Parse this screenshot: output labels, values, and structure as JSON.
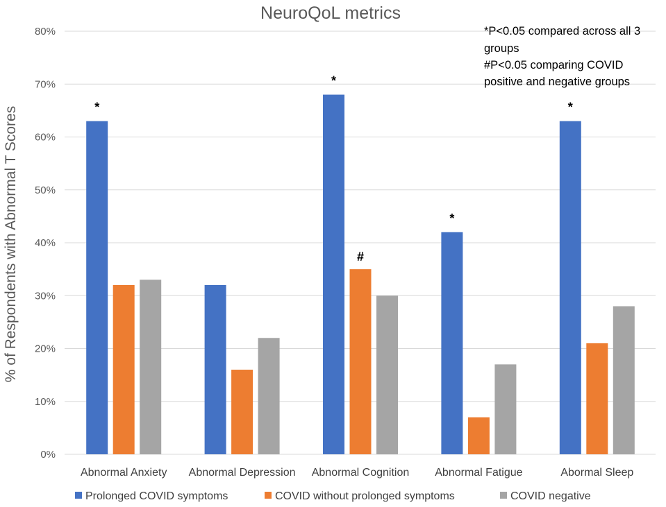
{
  "chart_data": {
    "type": "bar",
    "title": "NeuroQoL metrics",
    "xlabel": "",
    "ylabel": "% of Respondents with Abnormal T Scores",
    "ylim": [
      0,
      80
    ],
    "yticks": [
      0,
      10,
      20,
      30,
      40,
      50,
      60,
      70,
      80
    ],
    "ytick_labels": [
      "0%",
      "10%",
      "20%",
      "30%",
      "40%",
      "50%",
      "60%",
      "70%",
      "80%"
    ],
    "grid": true,
    "legend_position": "bottom",
    "categories": [
      "Abnormal Anxiety",
      "Abnormal Depression",
      "Abnormal Cognition",
      "Abnormal Fatigue",
      "Abormal Sleep"
    ],
    "series": [
      {
        "name": "Prolonged COVID symptoms",
        "color": "#4472c4",
        "values": [
          63,
          32,
          68,
          42,
          63
        ]
      },
      {
        "name": "COVID without prolonged symptoms",
        "color": "#ed7d31",
        "values": [
          32,
          16,
          35,
          7,
          21
        ]
      },
      {
        "name": "COVID negative",
        "color": "#a5a5a5",
        "values": [
          33,
          22,
          30,
          17,
          28
        ]
      }
    ],
    "significance_marks": [
      {
        "category": "Abnormal Anxiety",
        "series": "Prolonged COVID symptoms",
        "mark": "*"
      },
      {
        "category": "Abnormal Cognition",
        "series": "Prolonged COVID symptoms",
        "mark": "*"
      },
      {
        "category": "Abnormal Cognition",
        "series": "COVID without prolonged symptoms",
        "mark": "#"
      },
      {
        "category": "Abnormal Fatigue",
        "series": "Prolonged COVID symptoms",
        "mark": "*"
      },
      {
        "category": "Abormal Sleep",
        "series": "Prolonged COVID symptoms",
        "mark": "*"
      }
    ],
    "annotation_lines": [
      "*P<0.05 compared across all 3",
      "groups",
      "#P<0.05 comparing COVID",
      "positive and negative groups"
    ]
  }
}
